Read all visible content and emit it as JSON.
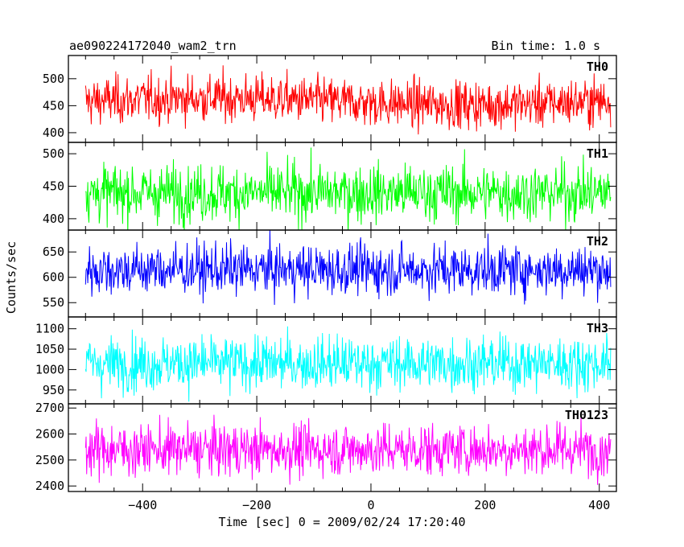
{
  "header": {
    "left_title": "ae090224172040_wam2_trn",
    "right_title": "Bin time: 1.0 s"
  },
  "chart_data": {
    "type": "line",
    "xlabel": "Time [sec] 0 = 2009/02/24 17:20:40",
    "ylabel": "Counts/sec",
    "xlim": [
      -530,
      430
    ],
    "x_ticks": [
      -400,
      -200,
      0,
      200,
      400
    ],
    "x_range": [
      -500,
      420
    ],
    "bin_time_s": 1.0,
    "grid": false,
    "panels": [
      {
        "name": "TH0",
        "color": "#ff0000",
        "ylim": [
          385,
          540
        ],
        "yticks": [
          400,
          450,
          500
        ],
        "mean": 458,
        "sd": 22
      },
      {
        "name": "TH1",
        "color": "#00ff00",
        "ylim": [
          385,
          515
        ],
        "yticks": [
          400,
          450,
          500
        ],
        "mean": 440,
        "sd": 22
      },
      {
        "name": "TH2",
        "color": "#0000ff",
        "ylim": [
          525,
          690
        ],
        "yticks": [
          550,
          600,
          650
        ],
        "mean": 615,
        "sd": 25
      },
      {
        "name": "TH3",
        "color": "#00ffff",
        "ylim": [
          920,
          1125
        ],
        "yticks": [
          950,
          1000,
          1050,
          1100
        ],
        "mean": 1015,
        "sd": 33
      },
      {
        "name": "TH0123",
        "color": "#ff00ff",
        "ylim": [
          2385,
          2710
        ],
        "yticks": [
          2400,
          2500,
          2600,
          2700
        ],
        "mean": 2540,
        "sd": 50
      }
    ]
  }
}
